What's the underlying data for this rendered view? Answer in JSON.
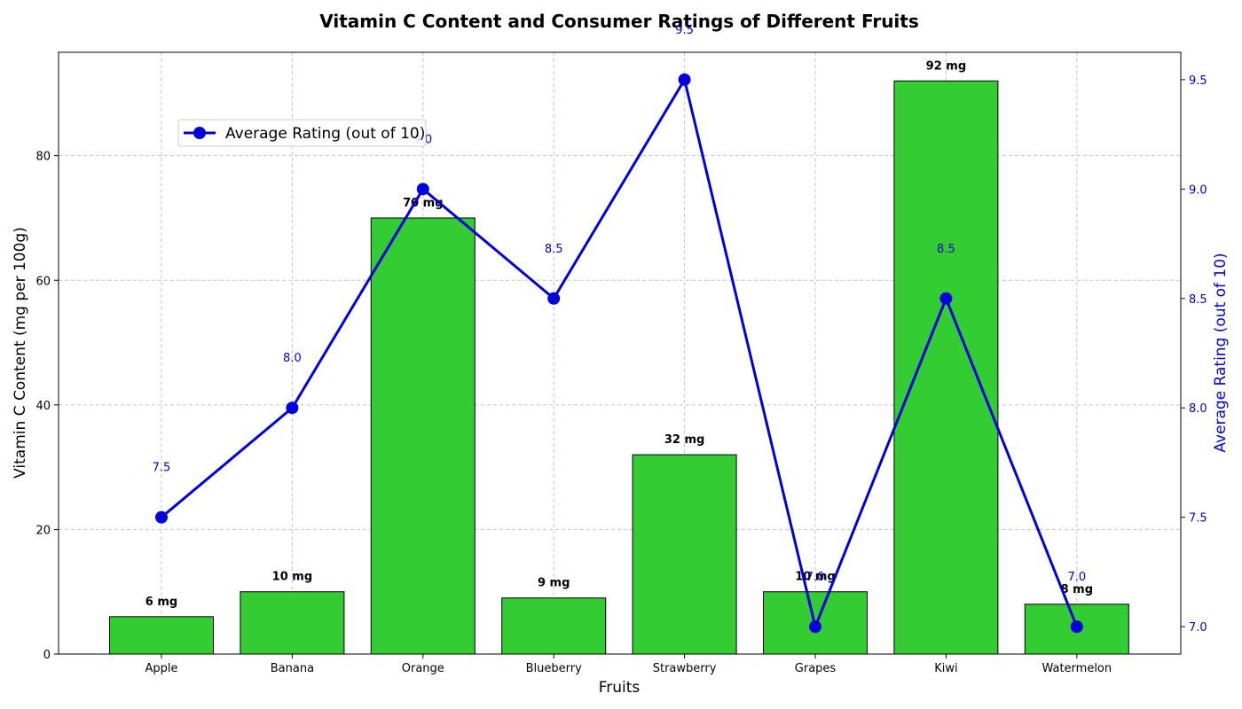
{
  "chart_data": {
    "type": "bar",
    "title": "Vitamin C Content and Consumer Ratings of Different Fruits",
    "xlabel": "Fruits",
    "ylabel": "Vitamin C Content (mg per 100g)",
    "ylabel_right": "Average Rating (out of 10)",
    "categories": [
      "Apple",
      "Banana",
      "Orange",
      "Blueberry",
      "Strawberry",
      "Grapes",
      "Kiwi",
      "Watermelon"
    ],
    "ylim": [
      0,
      96.6
    ],
    "y_ticks": [
      0,
      20,
      40,
      60,
      80
    ],
    "y2lim": [
      6.875,
      9.625
    ],
    "y2_ticks": [
      "7.0",
      "7.5",
      "8.0",
      "8.5",
      "9.0",
      "9.5"
    ],
    "grid": true,
    "legend_placement": "upper-left",
    "series": [
      {
        "type": "bar",
        "axis": "left",
        "values": [
          6,
          10,
          70,
          9,
          32,
          10,
          92,
          8
        ],
        "labels": [
          "6 mg",
          "10 mg",
          "70 mg",
          "9 mg",
          "32 mg",
          "10 mg",
          "92 mg",
          "8 mg"
        ],
        "color": "#33cc33"
      },
      {
        "type": "line",
        "axis": "right",
        "name": "Average Rating (out of 10)",
        "values": [
          7.5,
          8.0,
          9.0,
          8.5,
          9.5,
          7.0,
          8.5,
          7.0
        ],
        "labels": [
          "7.5",
          "8.0",
          "9.0",
          "8.5",
          "9.5",
          "7.0",
          "8.5",
          "7.0"
        ],
        "color": "#0000dd"
      }
    ]
  }
}
